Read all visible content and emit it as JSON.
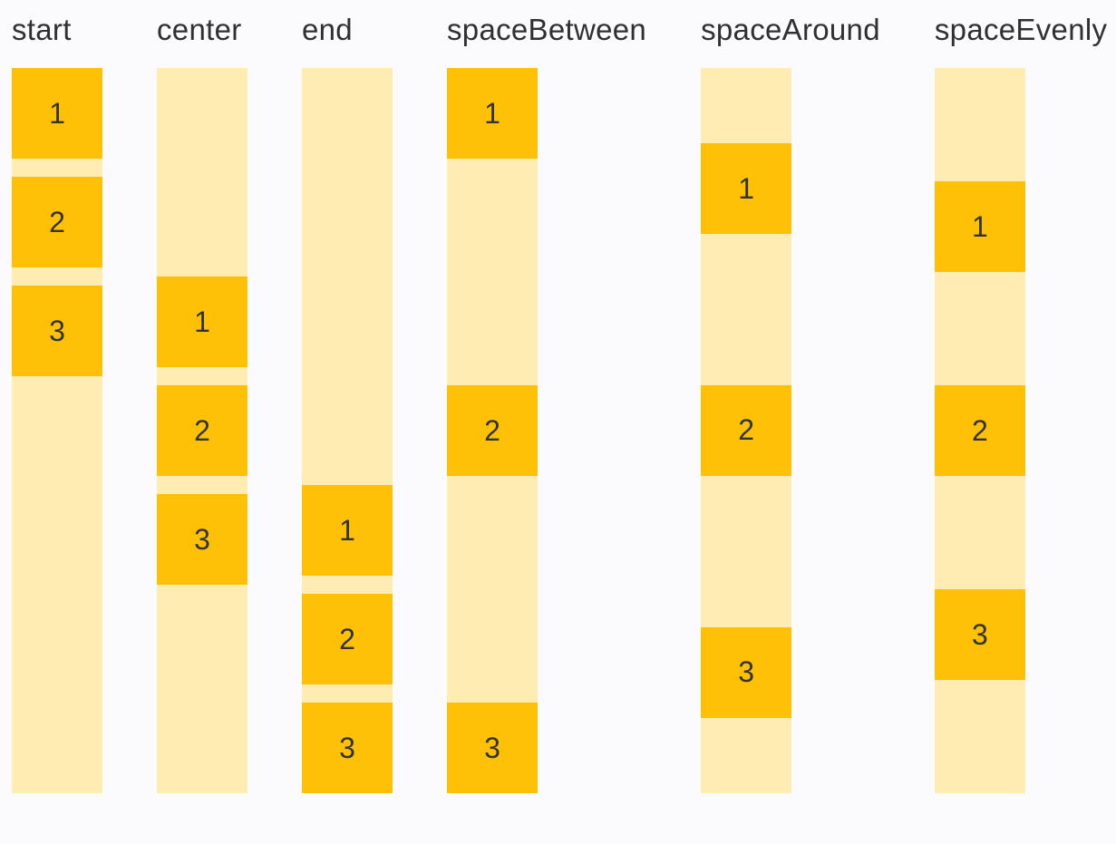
{
  "colors": {
    "background": "#fbfbfe",
    "track": "#ffecb3",
    "item": "#ffc107",
    "heading_text": "#303030",
    "item_text": "#333333"
  },
  "columns": [
    {
      "label": "start",
      "justify": "flex-start",
      "items": [
        "1",
        "2",
        "3"
      ]
    },
    {
      "label": "center",
      "justify": "center",
      "items": [
        "1",
        "2",
        "3"
      ]
    },
    {
      "label": "end",
      "justify": "flex-end",
      "items": [
        "1",
        "2",
        "3"
      ]
    },
    {
      "label": "spaceBetween",
      "justify": "space-between",
      "items": [
        "1",
        "2",
        "3"
      ]
    },
    {
      "label": "spaceAround",
      "justify": "space-around",
      "items": [
        "1",
        "2",
        "3"
      ]
    },
    {
      "label": "spaceEvenly",
      "justify": "space-evenly",
      "items": [
        "1",
        "2",
        "3"
      ]
    }
  ]
}
